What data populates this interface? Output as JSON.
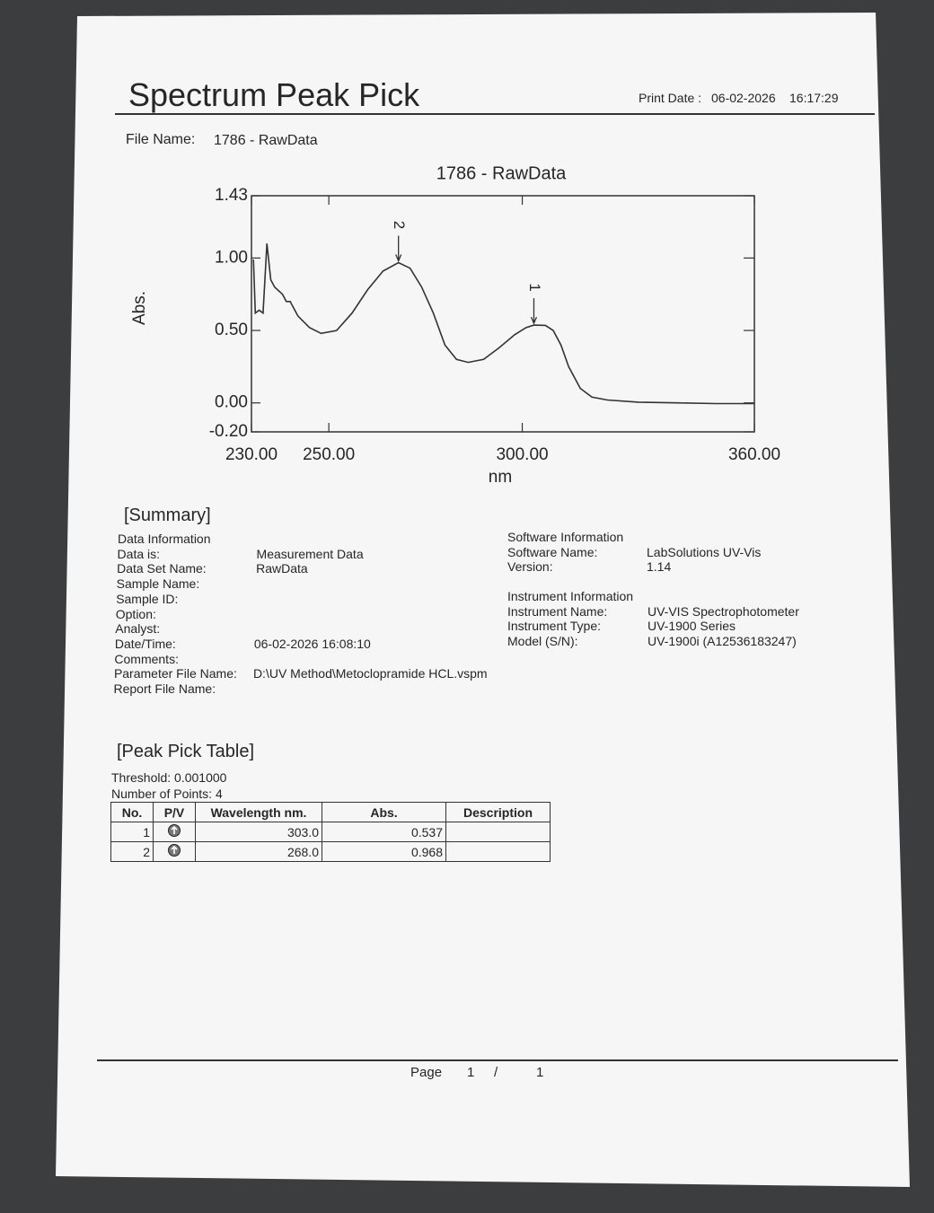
{
  "header": {
    "title": "Spectrum Peak Pick",
    "print_date_label": "Print Date :",
    "print_date": "06-02-2026",
    "print_time": "16:17:29"
  },
  "file": {
    "label": "File Name:",
    "value": "1786 - RawData"
  },
  "chart_data": {
    "type": "line",
    "title": "1786 - RawData",
    "x_label": "nm",
    "y_label": "Abs.",
    "xlim": [
      230,
      360
    ],
    "ylim": [
      -0.2,
      1.43
    ],
    "xticks": [
      {
        "value": 230,
        "label": "230.00"
      },
      {
        "value": 250,
        "label": "250.00"
      },
      {
        "value": 300,
        "label": "300.00"
      },
      {
        "value": 360,
        "label": "360.00"
      }
    ],
    "yticks": [
      {
        "value": -0.2,
        "label": "-0.20"
      },
      {
        "value": 0,
        "label": "0.00"
      },
      {
        "value": 0.5,
        "label": "0.50"
      },
      {
        "value": 1,
        "label": "1.00"
      },
      1.43
    ],
    "x": [
      230.5,
      231,
      232,
      233,
      234,
      235,
      236,
      238,
      239,
      240,
      242,
      245,
      248,
      252,
      256,
      260,
      264,
      268,
      271,
      274,
      277,
      280,
      283,
      286,
      290,
      294,
      298,
      301,
      303,
      306,
      308,
      310,
      312,
      315,
      318,
      322,
      330,
      340,
      350,
      360
    ],
    "series": [
      {
        "color": "#333333",
        "values": [
          0.99,
          0.62,
          0.64,
          0.62,
          1.1,
          0.85,
          0.8,
          0.75,
          0.7,
          0.7,
          0.6,
          0.52,
          0.48,
          0.5,
          0.62,
          0.78,
          0.91,
          0.968,
          0.93,
          0.8,
          0.62,
          0.4,
          0.3,
          0.28,
          0.3,
          0.38,
          0.47,
          0.52,
          0.537,
          0.535,
          0.5,
          0.4,
          0.25,
          0.1,
          0.04,
          0.02,
          0.005,
          0,
          -0.005,
          -0.005
        ]
      }
    ],
    "peaks": {
      "labels": [
        "1",
        "2"
      ],
      "x": [
        303,
        268
      ],
      "values": [
        0.537,
        0.968
      ]
    }
  },
  "summary": {
    "title": "[Summary]",
    "data_information": {
      "heading": "Data Information",
      "rows": [
        {
          "label": "Data is:",
          "value": "Measurement Data"
        },
        {
          "label": "Data Set Name:",
          "value": "RawData"
        },
        {
          "label": "Sample Name:"
        },
        {
          "label": "Sample ID:"
        },
        {
          "label": "Option:"
        },
        {
          "label": "Analyst:"
        },
        {
          "label": "Date/Time:",
          "value": "06-02-2026 16:08:10"
        },
        {
          "label": "Comments:"
        },
        {
          "label": "Parameter File Name:",
          "value": "D:\\UV Method\\Metoclopramide HCL.vspm"
        },
        {
          "label": "Report File Name:"
        }
      ]
    },
    "software_information": {
      "heading": "Software Information",
      "rows": [
        {
          "label": "Software Name:",
          "value": "LabSolutions UV-Vis"
        },
        {
          "label": "Version:",
          "value": "1.14"
        }
      ]
    },
    "instrument_information": {
      "heading": "Instrument Information",
      "rows": [
        {
          "label": "Instrument Name:",
          "value": "UV-VIS Spectrophotometer"
        },
        {
          "label": "Instrument Type:",
          "value": "UV-1900 Series"
        },
        {
          "label": "Model (S/N):",
          "value": "UV-1900i (A12536183247)"
        }
      ]
    }
  },
  "peak_table": {
    "title": "[Peak Pick Table]",
    "threshold": "Threshold: 0.001000",
    "points": "Number of Points: 4",
    "columns": [
      "No.",
      "P/V",
      "Wavelength nm.",
      "Abs.",
      "Description"
    ],
    "rows": [
      {
        "no": "1",
        "wavelength": "303.0",
        "abs": "0.537"
      },
      {
        "no": "2",
        "wavelength": "268.0",
        "abs": "0.968"
      }
    ]
  },
  "footer": {
    "page_label": "Page",
    "page": "1",
    "separator": "/",
    "pages": "1"
  }
}
